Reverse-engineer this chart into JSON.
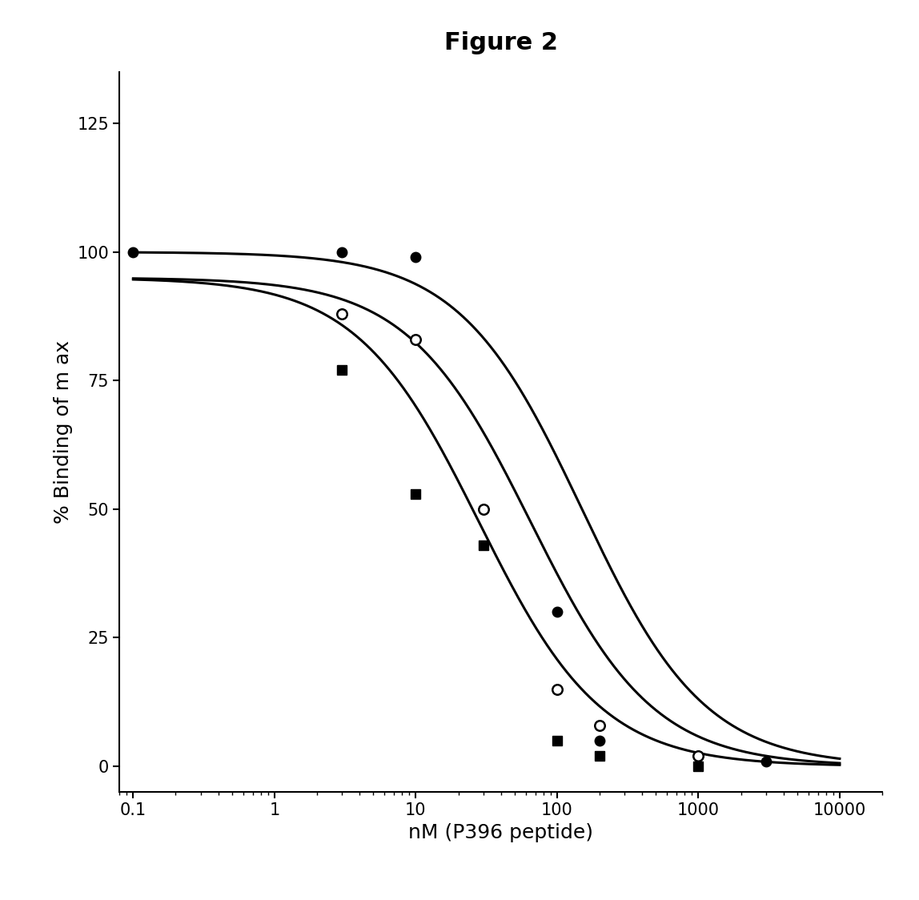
{
  "title": "Figure 2",
  "xlabel": "nM (P396 peptide)",
  "ylabel": "% Binding of m ax",
  "ylim": [
    -5,
    135
  ],
  "yticks": [
    0,
    25,
    50,
    75,
    100,
    125
  ],
  "xtick_labels": [
    "0.1",
    "1",
    "10",
    "100",
    "1000",
    "10000"
  ],
  "xtick_positions": [
    0.1,
    1,
    10,
    100,
    1000,
    10000
  ],
  "series": [
    {
      "label": "filled_circle",
      "marker": "o",
      "filled": true,
      "ic50": 150,
      "top": 100,
      "bottom": 0,
      "hillslope": 1.0,
      "data_x": [
        0.1,
        3,
        10,
        100,
        200,
        1000,
        3000
      ],
      "data_y": [
        100,
        100,
        99,
        30,
        5,
        2,
        1
      ]
    },
    {
      "label": "open_circle",
      "marker": "o",
      "filled": false,
      "ic50": 65,
      "top": 95,
      "bottom": 0,
      "hillslope": 1.0,
      "data_x": [
        3,
        10,
        30,
        100,
        200,
        1000
      ],
      "data_y": [
        88,
        83,
        50,
        15,
        8,
        2
      ]
    },
    {
      "label": "filled_square",
      "marker": "s",
      "filled": true,
      "ic50": 28,
      "top": 95,
      "bottom": 0,
      "hillslope": 1.0,
      "data_x": [
        3,
        10,
        30,
        100,
        200,
        1000
      ],
      "data_y": [
        77,
        53,
        43,
        5,
        2,
        0
      ]
    }
  ],
  "background_color": "#ffffff",
  "title_fontsize": 22,
  "axis_label_fontsize": 18,
  "tick_fontsize": 15,
  "line_width": 2.2,
  "marker_size": 9
}
